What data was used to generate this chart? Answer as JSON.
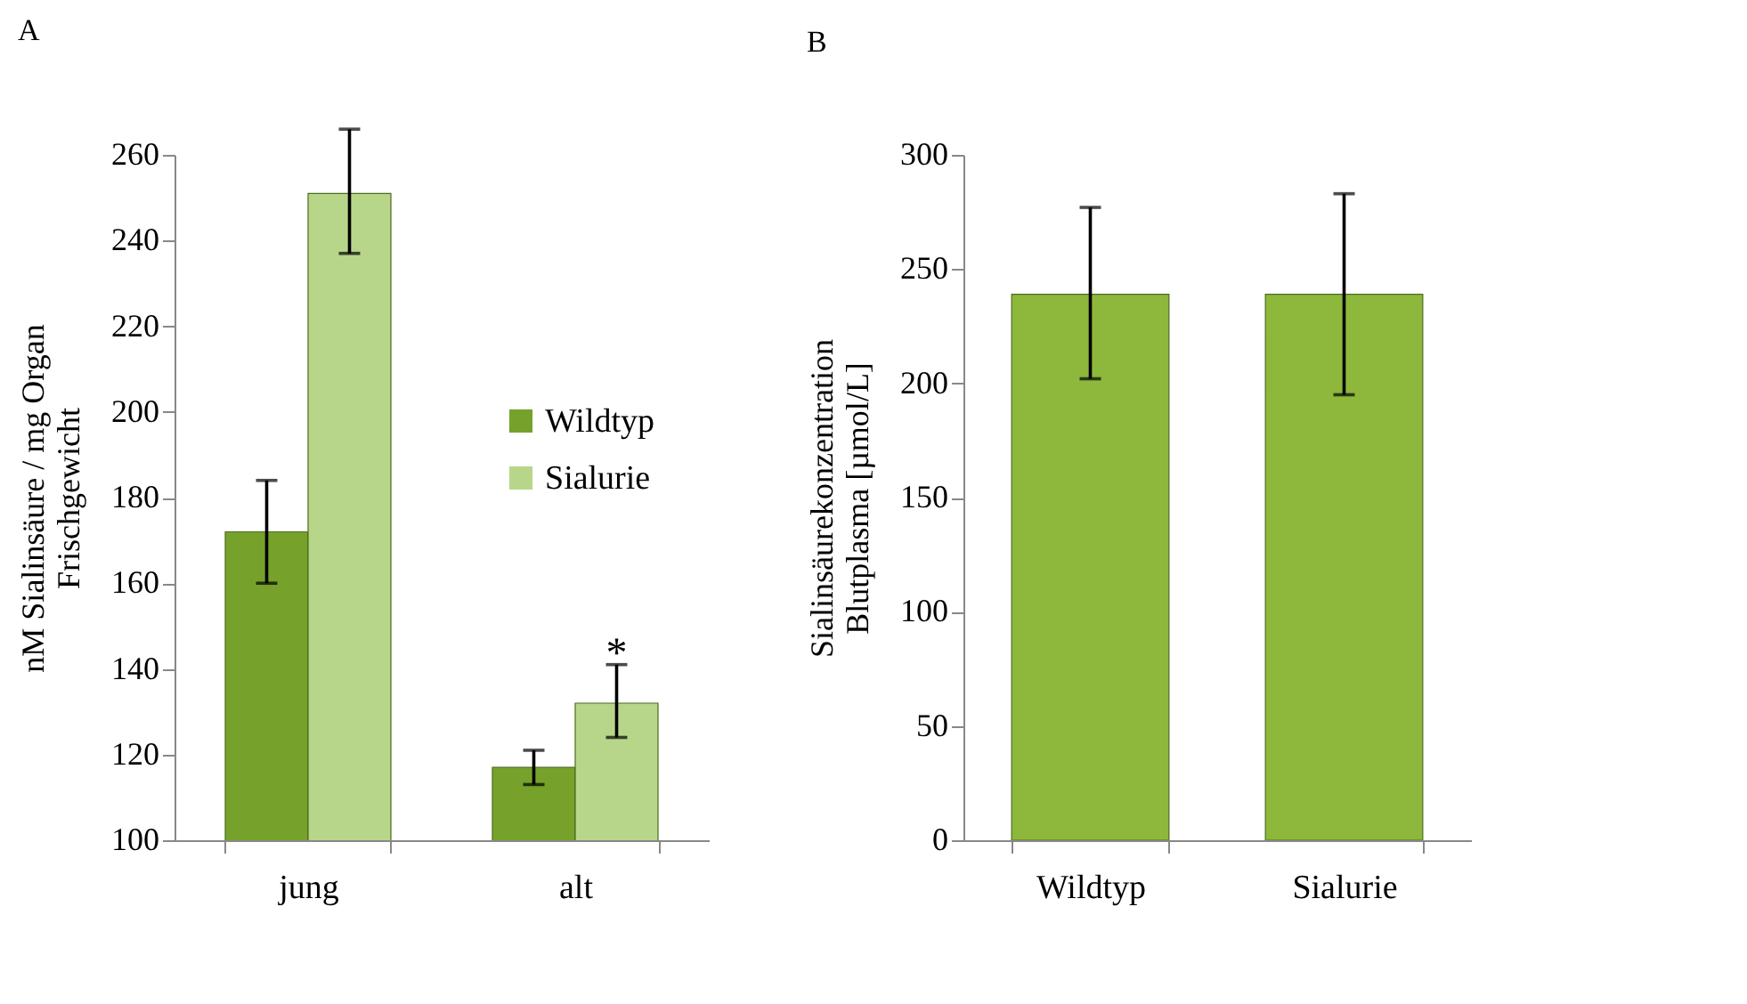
{
  "chart_data": [
    {
      "type": "bar",
      "title": "A",
      "ylabel": "nM Sialinsäure / mg Organ\nFrischgewicht",
      "categories": [
        "jung",
        "alt"
      ],
      "series": [
        {
          "name": "Wildtyp",
          "color": "#76a22c",
          "values": [
            172,
            117
          ],
          "errors": [
            [
              160,
              184
            ],
            [
              113,
              121
            ]
          ]
        },
        {
          "name": "Sialurie",
          "color": "#b8d68a",
          "values": [
            251,
            132
          ],
          "errors": [
            [
              237,
              266
            ],
            [
              124,
              141
            ]
          ]
        }
      ],
      "ylim": [
        100,
        260
      ],
      "yticks": [
        100,
        120,
        140,
        160,
        180,
        200,
        220,
        240,
        260
      ],
      "grid": false,
      "legend": "right",
      "annotations": [
        "*"
      ]
    },
    {
      "type": "bar",
      "title": "B",
      "ylabel": "Sialinsäurekonzentration\nBlutplasma [µmol/L]",
      "categories": [
        "Wildtyp",
        "Sialurie"
      ],
      "series": [
        {
          "color": "#8db83c",
          "values": [
            239,
            239
          ],
          "errors": [
            [
              202,
              277
            ],
            [
              195,
              283
            ]
          ]
        }
      ],
      "ylim": [
        0,
        300
      ],
      "yticks": [
        0,
        50,
        100,
        150,
        200,
        250,
        300
      ],
      "grid": false,
      "legend": false
    }
  ]
}
